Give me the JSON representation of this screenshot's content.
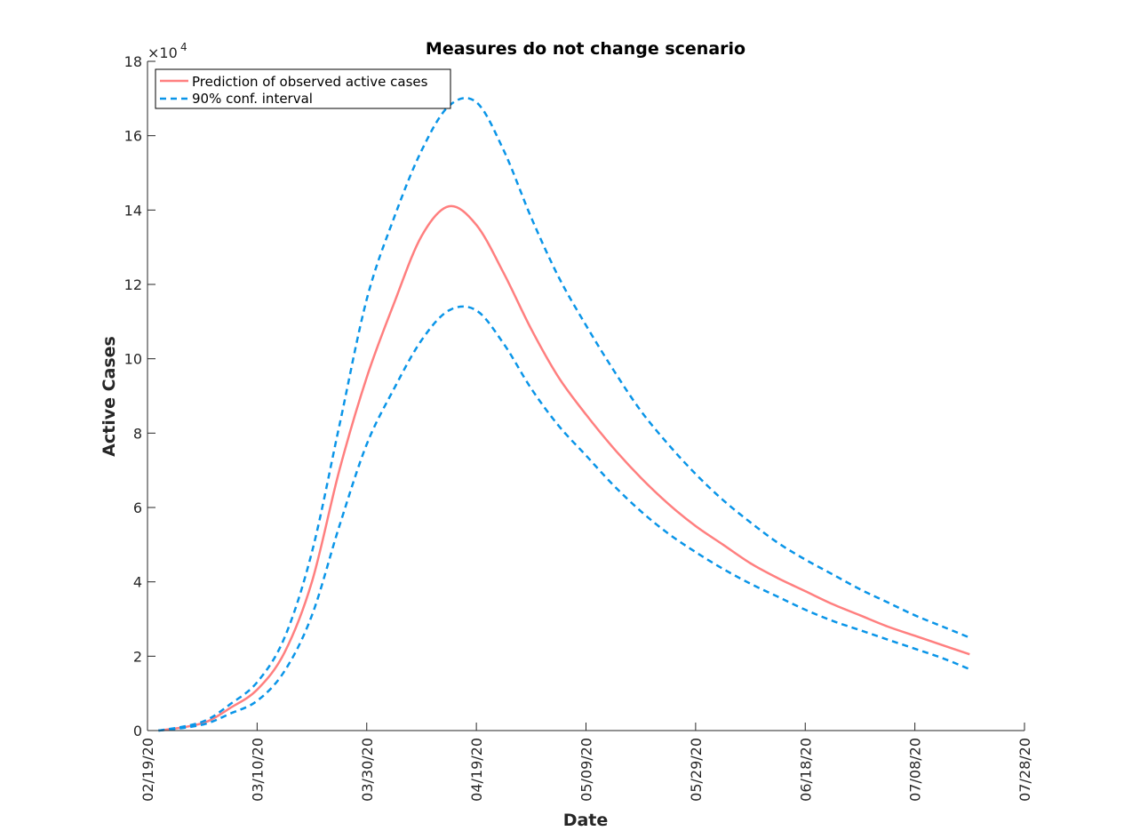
{
  "chart_data": {
    "type": "line",
    "title": "Measures do not change scenario",
    "xlabel": "Date",
    "ylabel": "Active Cases",
    "y_exponent_label": "×10",
    "y_exponent_power": "4",
    "x_axis_type": "date",
    "xlim": [
      "2020-02-19",
      "2020-07-28"
    ],
    "ylim": [
      0,
      180000
    ],
    "x_tick_dates": [
      "2020-02-19",
      "2020-03-10",
      "2020-03-30",
      "2020-04-19",
      "2020-05-09",
      "2020-05-29",
      "2020-06-18",
      "2020-07-08",
      "2020-07-28"
    ],
    "x_tick_labels": [
      "02/19/20",
      "03/10/20",
      "03/30/20",
      "04/19/20",
      "05/09/20",
      "05/29/20",
      "06/18/20",
      "07/08/20",
      "07/28/20"
    ],
    "y_ticks": [
      0,
      20000,
      40000,
      60000,
      80000,
      100000,
      120000,
      140000,
      160000,
      180000
    ],
    "y_tick_labels": [
      "0",
      "2",
      "4",
      "6",
      "8",
      "10",
      "12",
      "14",
      "16",
      "18"
    ],
    "grid": false,
    "legend_position": "top-left",
    "colors": {
      "prediction": "#ff7f7f",
      "interval": "#0a95e8",
      "axis": "#262626"
    },
    "x": [
      "2020-02-21",
      "2020-02-26",
      "2020-03-01",
      "2020-03-05",
      "2020-03-10",
      "2020-03-15",
      "2020-03-20",
      "2020-03-25",
      "2020-03-30",
      "2020-04-04",
      "2020-04-09",
      "2020-04-14",
      "2020-04-19",
      "2020-04-24",
      "2020-04-29",
      "2020-05-04",
      "2020-05-09",
      "2020-05-14",
      "2020-05-19",
      "2020-05-24",
      "2020-05-29",
      "2020-06-03",
      "2020-06-08",
      "2020-06-13",
      "2020-06-18",
      "2020-06-23",
      "2020-06-28",
      "2020-07-03",
      "2020-07-08",
      "2020-07-13",
      "2020-07-18"
    ],
    "series": [
      {
        "name": "Prediction of observed active cases",
        "style": "solid",
        "values": [
          0,
          1000,
          2500,
          6000,
          11000,
          21000,
          40000,
          70000,
          95000,
          115000,
          133000,
          141000,
          136000,
          123000,
          108000,
          95000,
          85000,
          76000,
          68000,
          61000,
          55000,
          50000,
          45000,
          41000,
          37500,
          34000,
          31000,
          28000,
          25500,
          23000,
          20500
        ]
      },
      {
        "name": "90% conf. interval",
        "style": "dashed",
        "values": [
          0,
          1200,
          3000,
          7000,
          13000,
          25000,
          48000,
          82000,
          116000,
          138000,
          156000,
          168000,
          169000,
          156000,
          138000,
          122000,
          109000,
          97000,
          86000,
          77000,
          69000,
          62000,
          56000,
          50500,
          46000,
          42000,
          38000,
          34500,
          31000,
          28000,
          25000
        ]
      },
      {
        "name": "",
        "style": "dashed",
        "values": [
          0,
          800,
          2000,
          4500,
          8000,
          16000,
          31000,
          55000,
          77000,
          92000,
          105000,
          113000,
          113000,
          104000,
          92000,
          82000,
          74000,
          66000,
          59000,
          53000,
          48000,
          43500,
          39500,
          36000,
          32500,
          29500,
          27000,
          24500,
          22000,
          19500,
          16500
        ]
      }
    ]
  }
}
